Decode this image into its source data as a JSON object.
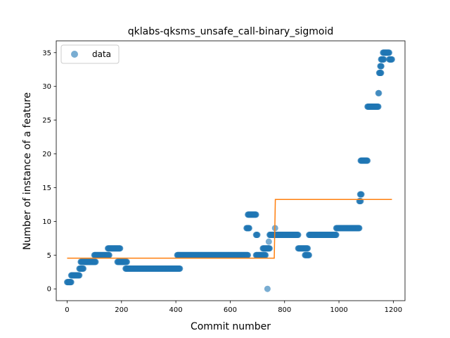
{
  "chart_data": {
    "type": "scatter",
    "title": "qklabs-qksms_unsafe_call-binary_sigmoid",
    "xlabel": "Commit number",
    "ylabel": "Number of instance of a feature",
    "xlim": [
      -40,
      1243
    ],
    "ylim": [
      -1.75,
      36.75
    ],
    "xticks": [
      0,
      200,
      400,
      600,
      800,
      1000,
      1200
    ],
    "yticks": [
      0,
      5,
      10,
      15,
      20,
      25,
      30,
      35
    ],
    "grid": false,
    "legend": {
      "placement": "top-left",
      "entries": [
        "data"
      ]
    },
    "colors": {
      "points": "#1f77b4",
      "fit": "#ff7f0e"
    },
    "series": [
      {
        "name": "data",
        "kind": "scatter",
        "segments": [
          {
            "x": [
              0,
              15
            ],
            "y": 1
          },
          {
            "x": 10,
            "y": 1
          },
          {
            "x": [
              15,
              45
            ],
            "y": 2
          },
          {
            "x": [
              45,
              60
            ],
            "y": 3
          },
          {
            "x": [
              50,
              105
            ],
            "y": 4
          },
          {
            "x": [
              100,
              155
            ],
            "y": 5
          },
          {
            "x": [
              150,
              195
            ],
            "y": 6
          },
          {
            "x": [
              185,
              220
            ],
            "y": 4
          },
          {
            "x": [
              215,
              415
            ],
            "y": 3
          },
          {
            "x": [
              405,
              665
            ],
            "y": 5
          },
          {
            "x": [
              660,
              670
            ],
            "y": 9
          },
          {
            "x": [
              665,
              695
            ],
            "y": 11
          },
          {
            "x": [
              695,
              700
            ],
            "y": 8
          },
          {
            "x": [
              695,
              730
            ],
            "y": 5
          },
          {
            "x": [
              720,
              745
            ],
            "y": 6
          },
          {
            "x": [
              737,
              737
            ],
            "y": 0
          },
          {
            "x": [
              742,
              742
            ],
            "y": 7
          },
          {
            "x": [
              745,
              850
            ],
            "y": 8
          },
          {
            "x": [
              765,
              765
            ],
            "y": 9
          },
          {
            "x": [
              850,
              885
            ],
            "y": 6
          },
          {
            "x": [
              875,
              890
            ],
            "y": 5
          },
          {
            "x": [
              890,
              990
            ],
            "y": 8
          },
          {
            "x": [
              990,
              1075
            ],
            "y": 9
          },
          {
            "x": [
              1075,
              1080
            ],
            "y": 13
          },
          {
            "x": [
              1078,
              1083
            ],
            "y": 14
          },
          {
            "x": [
              1080,
              1105
            ],
            "y": 19
          },
          {
            "x": [
              1105,
              1145
            ],
            "y": 27
          },
          {
            "x": [
              1145,
              1147
            ],
            "y": 29
          },
          {
            "x": [
              1148,
              1155
            ],
            "y": 32
          },
          {
            "x": [
              1152,
              1156
            ],
            "y": 33
          },
          {
            "x": [
              1155,
              1165
            ],
            "y": 34
          },
          {
            "x": [
              1162,
              1185
            ],
            "y": 35
          },
          {
            "x": [
              1185,
              1195
            ],
            "y": 34
          }
        ]
      },
      {
        "name": "fit",
        "kind": "line",
        "x": [
          0,
          762,
          766,
          1195
        ],
        "y": [
          4.55,
          4.55,
          13.25,
          13.25
        ]
      }
    ]
  }
}
